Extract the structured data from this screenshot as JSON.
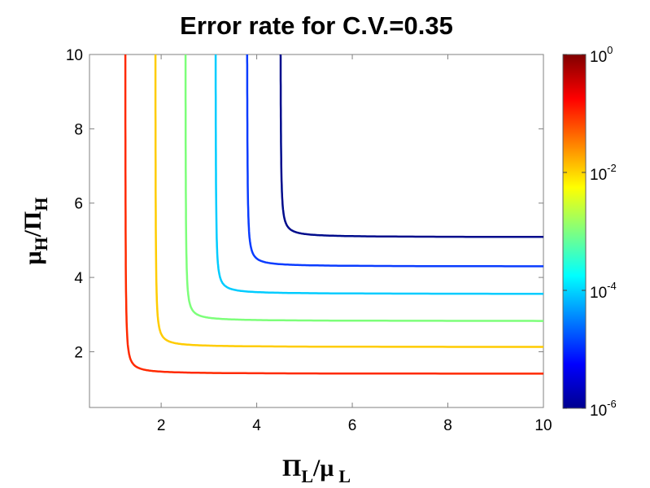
{
  "chart_data": {
    "type": "contour",
    "title": "Error rate for C.V.=0.35",
    "xlabel": {
      "main": "Π",
      "sub": "L",
      "mid": "/μ",
      "sub2": "L"
    },
    "ylabel": {
      "main": "μ",
      "sub": "H",
      "mid": "/Π",
      "sub2": "H"
    },
    "xlim": [
      0.5,
      10
    ],
    "ylim": [
      0.5,
      10
    ],
    "x_ticks": [
      "2",
      "4",
      "6",
      "8",
      "10"
    ],
    "x_tick_values": [
      2,
      4,
      6,
      8,
      10
    ],
    "y_ticks": [
      "2",
      "4",
      "6",
      "8",
      "10"
    ],
    "y_tick_values": [
      2,
      4,
      6,
      8,
      10
    ],
    "grid": false,
    "colormap": "jet",
    "colorbar": {
      "scale": "log",
      "range": [
        1e-06,
        1
      ],
      "ticks": [
        {
          "base": "10",
          "exp": "0",
          "value": 0
        },
        {
          "base": "10",
          "exp": "-2",
          "value": -2
        },
        {
          "base": "10",
          "exp": "-4",
          "value": -4
        },
        {
          "base": "10",
          "exp": "-6",
          "value": -6
        }
      ]
    },
    "contours": [
      {
        "level": 0.1,
        "color": "#ff2a00",
        "x_asymptote": 1.25,
        "y_asymptote": 1.41
      },
      {
        "level": 0.01,
        "color": "#ffcc00",
        "x_asymptote": 1.88,
        "y_asymptote": 2.13
      },
      {
        "level": 0.001,
        "color": "#7dff7a",
        "x_asymptote": 2.51,
        "y_asymptote": 2.83
      },
      {
        "level": 0.0001,
        "color": "#00ccff",
        "x_asymptote": 3.14,
        "y_asymptote": 3.56
      },
      {
        "level": 1e-05,
        "color": "#0a3cff",
        "x_asymptote": 3.8,
        "y_asymptote": 4.3
      },
      {
        "level": 1e-06,
        "color": "#000c8c",
        "x_asymptote": 4.5,
        "y_asymptote": 5.09
      }
    ]
  }
}
